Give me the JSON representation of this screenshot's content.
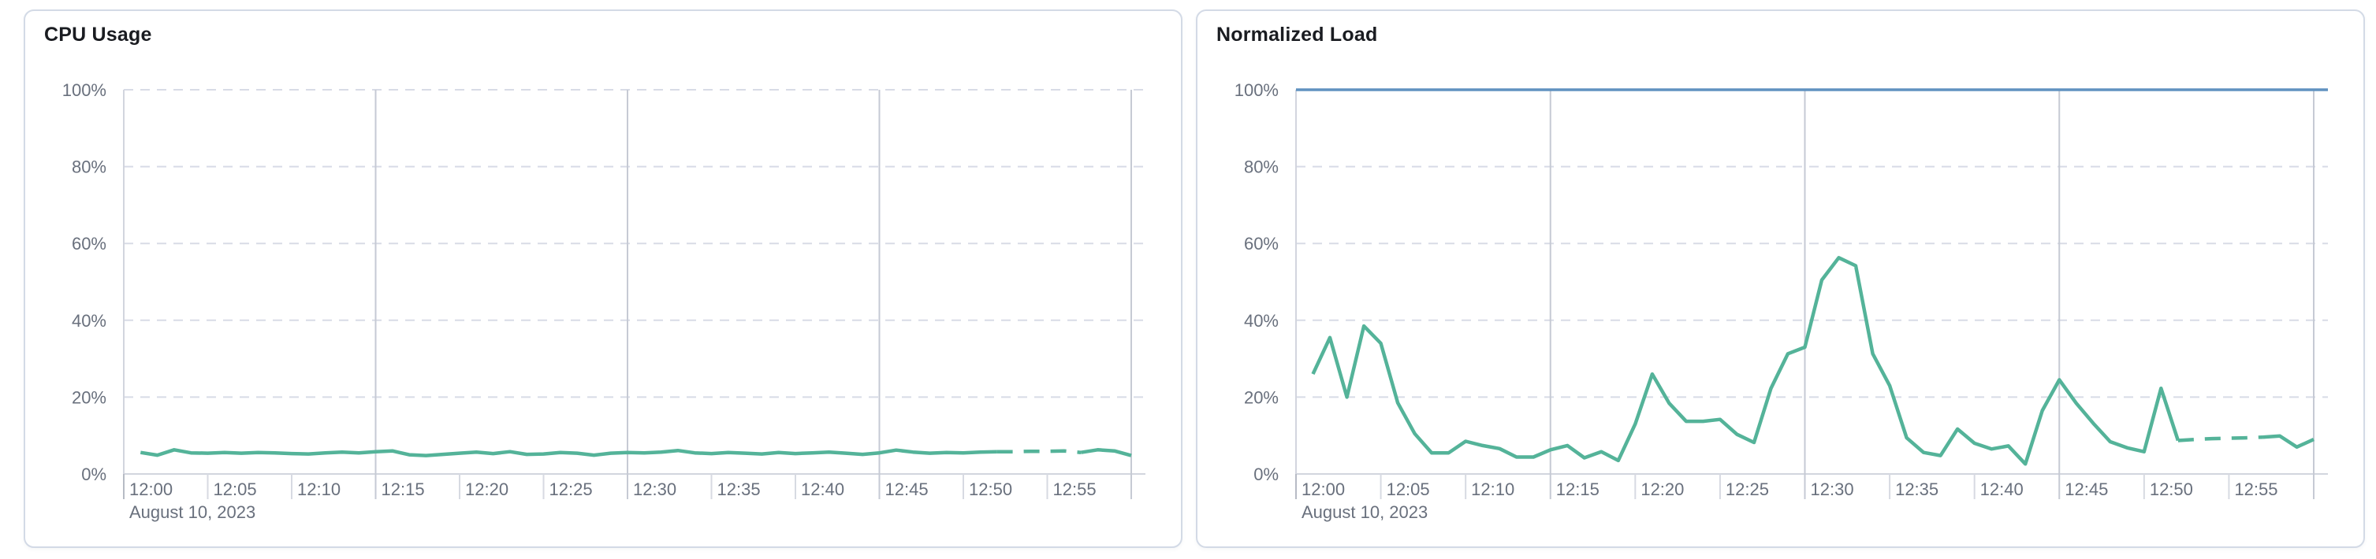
{
  "page": {
    "background": "#ffffff"
  },
  "panels": [
    {
      "title": "CPU Usage"
    },
    {
      "title": "Normalized Load"
    }
  ],
  "colors": {
    "series_green": "#54B399",
    "limit_blue": "#6092C0",
    "axis_text": "#69707D",
    "title_text": "#1a1c21",
    "grid_dashed": "#d8dbe6",
    "grid_quarter": "#c6cad4",
    "axis_line": "#d2d5de",
    "tick_minor": "#d7dae2",
    "tick_major": "#b7bbc5",
    "panel_border": "#d3dae6"
  },
  "chart_data": [
    {
      "type": "line",
      "title": "CPU Usage",
      "x_axis": {
        "start": "12:00",
        "end": "13:00",
        "tick_labels": [
          "12:00",
          "12:05",
          "12:10",
          "12:15",
          "12:20",
          "12:25",
          "12:30",
          "12:35",
          "12:40",
          "12:45",
          "12:50",
          "12:55"
        ],
        "tick_interval_minutes": 5,
        "quarter_gridlines_minutes": [
          15,
          30,
          45,
          60
        ],
        "date_label": "August 10, 2023"
      },
      "y_axis": {
        "min": 0,
        "max": 100,
        "unit": "%",
        "tick_labels": [
          "0%",
          "20%",
          "40%",
          "60%",
          "80%",
          "100%"
        ]
      },
      "grid": {
        "horizontal": "dashed",
        "vertical": "quarter-hour solid"
      },
      "legend": "none",
      "series": [
        {
          "name": "cpu-usage",
          "color": "#54B399",
          "start_minute": 1,
          "interval_minutes": 1,
          "dashed_from_minute": 52,
          "dashed_to_minute": 57,
          "values": [
            5.6,
            4.9,
            6.3,
            5.5,
            5.4,
            5.6,
            5.4,
            5.6,
            5.5,
            5.3,
            5.2,
            5.5,
            5.7,
            5.5,
            5.8,
            6.0,
            5.0,
            4.8,
            5.1,
            5.4,
            5.7,
            5.3,
            5.8,
            5.1,
            5.2,
            5.6,
            5.4,
            4.9,
            5.4,
            5.6,
            5.5,
            5.7,
            6.1,
            5.5,
            5.3,
            5.6,
            5.4,
            5.2,
            5.6,
            5.3,
            5.5,
            5.7,
            5.4,
            5.1,
            5.5,
            6.2,
            5.7,
            5.4,
            5.6,
            5.5,
            5.7,
            5.8,
            5.8,
            5.9,
            5.9,
            6.0,
            5.6,
            6.3,
            6.0,
            4.8
          ]
        }
      ]
    },
    {
      "type": "line",
      "title": "Normalized Load",
      "x_axis": {
        "start": "12:00",
        "end": "13:00",
        "tick_labels": [
          "12:00",
          "12:05",
          "12:10",
          "12:15",
          "12:20",
          "12:25",
          "12:30",
          "12:35",
          "12:40",
          "12:45",
          "12:50",
          "12:55"
        ],
        "tick_interval_minutes": 5,
        "quarter_gridlines_minutes": [
          15,
          30,
          45,
          60
        ],
        "date_label": "August 10, 2023"
      },
      "y_axis": {
        "min": 0,
        "max": 100,
        "unit": "%",
        "tick_labels": [
          "0%",
          "20%",
          "40%",
          "60%",
          "80%",
          "100%"
        ]
      },
      "grid": {
        "horizontal": "dashed",
        "vertical": "quarter-hour solid"
      },
      "legend": "none",
      "limit_line": {
        "name": "limit",
        "value": 100,
        "color": "#6092C0"
      },
      "series": [
        {
          "name": "normalized-load",
          "color": "#54B399",
          "start_minute": 1,
          "interval_minutes": 1,
          "dashed_from_minute": 52,
          "dashed_to_minute": 57,
          "values": [
            26,
            35.5,
            20,
            38.5,
            34,
            18.5,
            10.5,
            5.5,
            5.5,
            8.5,
            7.4,
            6.6,
            4.4,
            4.4,
            6.3,
            7.4,
            4.2,
            5.8,
            3.5,
            13,
            26,
            18.4,
            13.7,
            13.7,
            14.2,
            10.3,
            8.2,
            22.3,
            31.3,
            33,
            50.5,
            56.3,
            54.2,
            31.3,
            23,
            9.4,
            5.6,
            4.8,
            11.7,
            8,
            6.5,
            7.3,
            2.6,
            16.5,
            24.5,
            18.4,
            13.2,
            8.4,
            6.8,
            5.8,
            22.3,
            8.7,
            9,
            9.2,
            9.3,
            9.4,
            9.6,
            9.9,
            7.0,
            9.0
          ]
        }
      ]
    }
  ]
}
